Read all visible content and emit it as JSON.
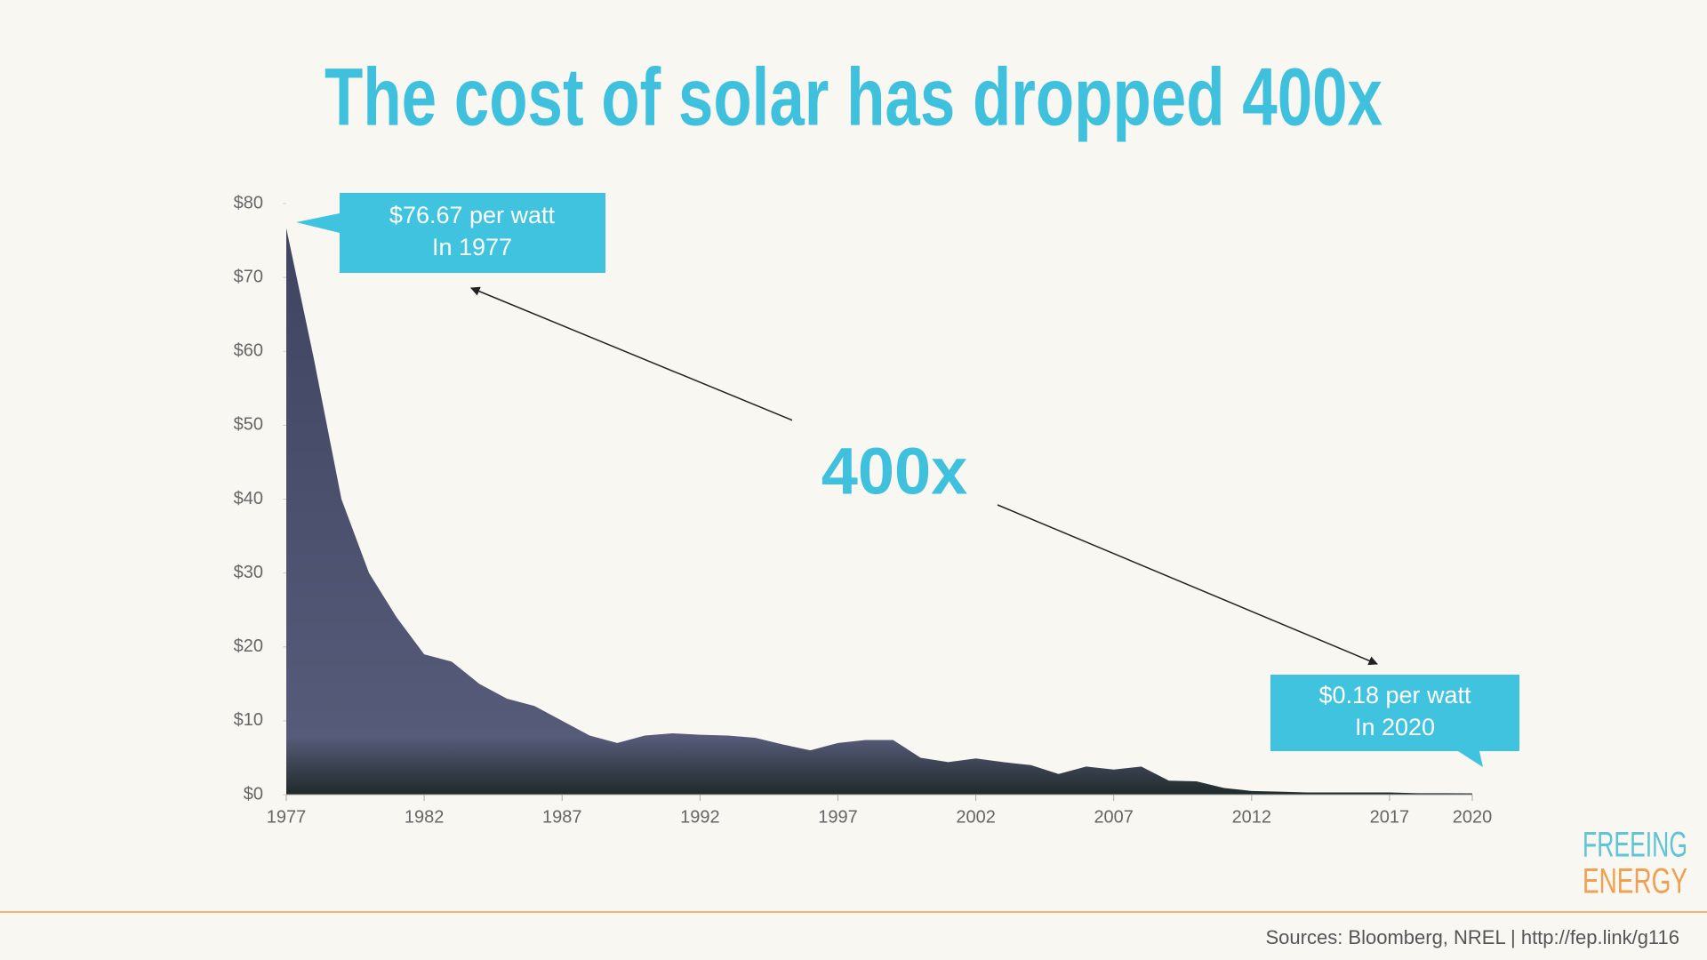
{
  "chart_data": {
    "type": "area",
    "title": "The cost of solar has dropped 400x",
    "x": [
      1977,
      1978,
      1979,
      1980,
      1981,
      1982,
      1983,
      1984,
      1985,
      1986,
      1987,
      1988,
      1989,
      1990,
      1991,
      1992,
      1993,
      1994,
      1995,
      1996,
      1997,
      1998,
      1999,
      2000,
      2001,
      2002,
      2003,
      2004,
      2005,
      2006,
      2007,
      2008,
      2009,
      2010,
      2011,
      2012,
      2013,
      2014,
      2015,
      2016,
      2017,
      2018,
      2019,
      2020
    ],
    "values": [
      76.67,
      59,
      40,
      30,
      24,
      19,
      18,
      15,
      13,
      12,
      10,
      8,
      7,
      8,
      8.3,
      8.1,
      8,
      7.7,
      6.8,
      6,
      7,
      7.4,
      7.4,
      5,
      4.4,
      4.9,
      4.4,
      4,
      2.8,
      3.8,
      3.4,
      3.8,
      1.9,
      1.8,
      0.9,
      0.5,
      0.4,
      0.3,
      0.3,
      0.3,
      0.3,
      0.2,
      0.2,
      0.18
    ],
    "color": "#4b5170",
    "xlim": [
      1977,
      2020
    ],
    "xticks": [
      1977,
      1982,
      1987,
      1992,
      1997,
      2002,
      2007,
      2012,
      2017,
      2020
    ],
    "ylim": [
      0,
      80
    ],
    "yticks": [
      {
        "value": 0,
        "label": "$0"
      },
      {
        "value": 10,
        "label": "$10"
      },
      {
        "value": 20,
        "label": "$20"
      },
      {
        "value": 30,
        "label": "$30"
      },
      {
        "value": 40,
        "label": "$40"
      },
      {
        "value": 50,
        "label": "$50"
      },
      {
        "value": 60,
        "label": "$60"
      },
      {
        "value": 70,
        "label": "$70"
      },
      {
        "value": 80,
        "label": "$80"
      }
    ],
    "annotations": [
      "$76.67 per watt",
      "In 1977",
      "400x",
      "$0.18 per watt",
      "In 2020"
    ]
  },
  "logo": [
    "FREEING",
    "ENERGY"
  ],
  "source": "Sources: Bloomberg, NREL | http://fep.link/g116"
}
